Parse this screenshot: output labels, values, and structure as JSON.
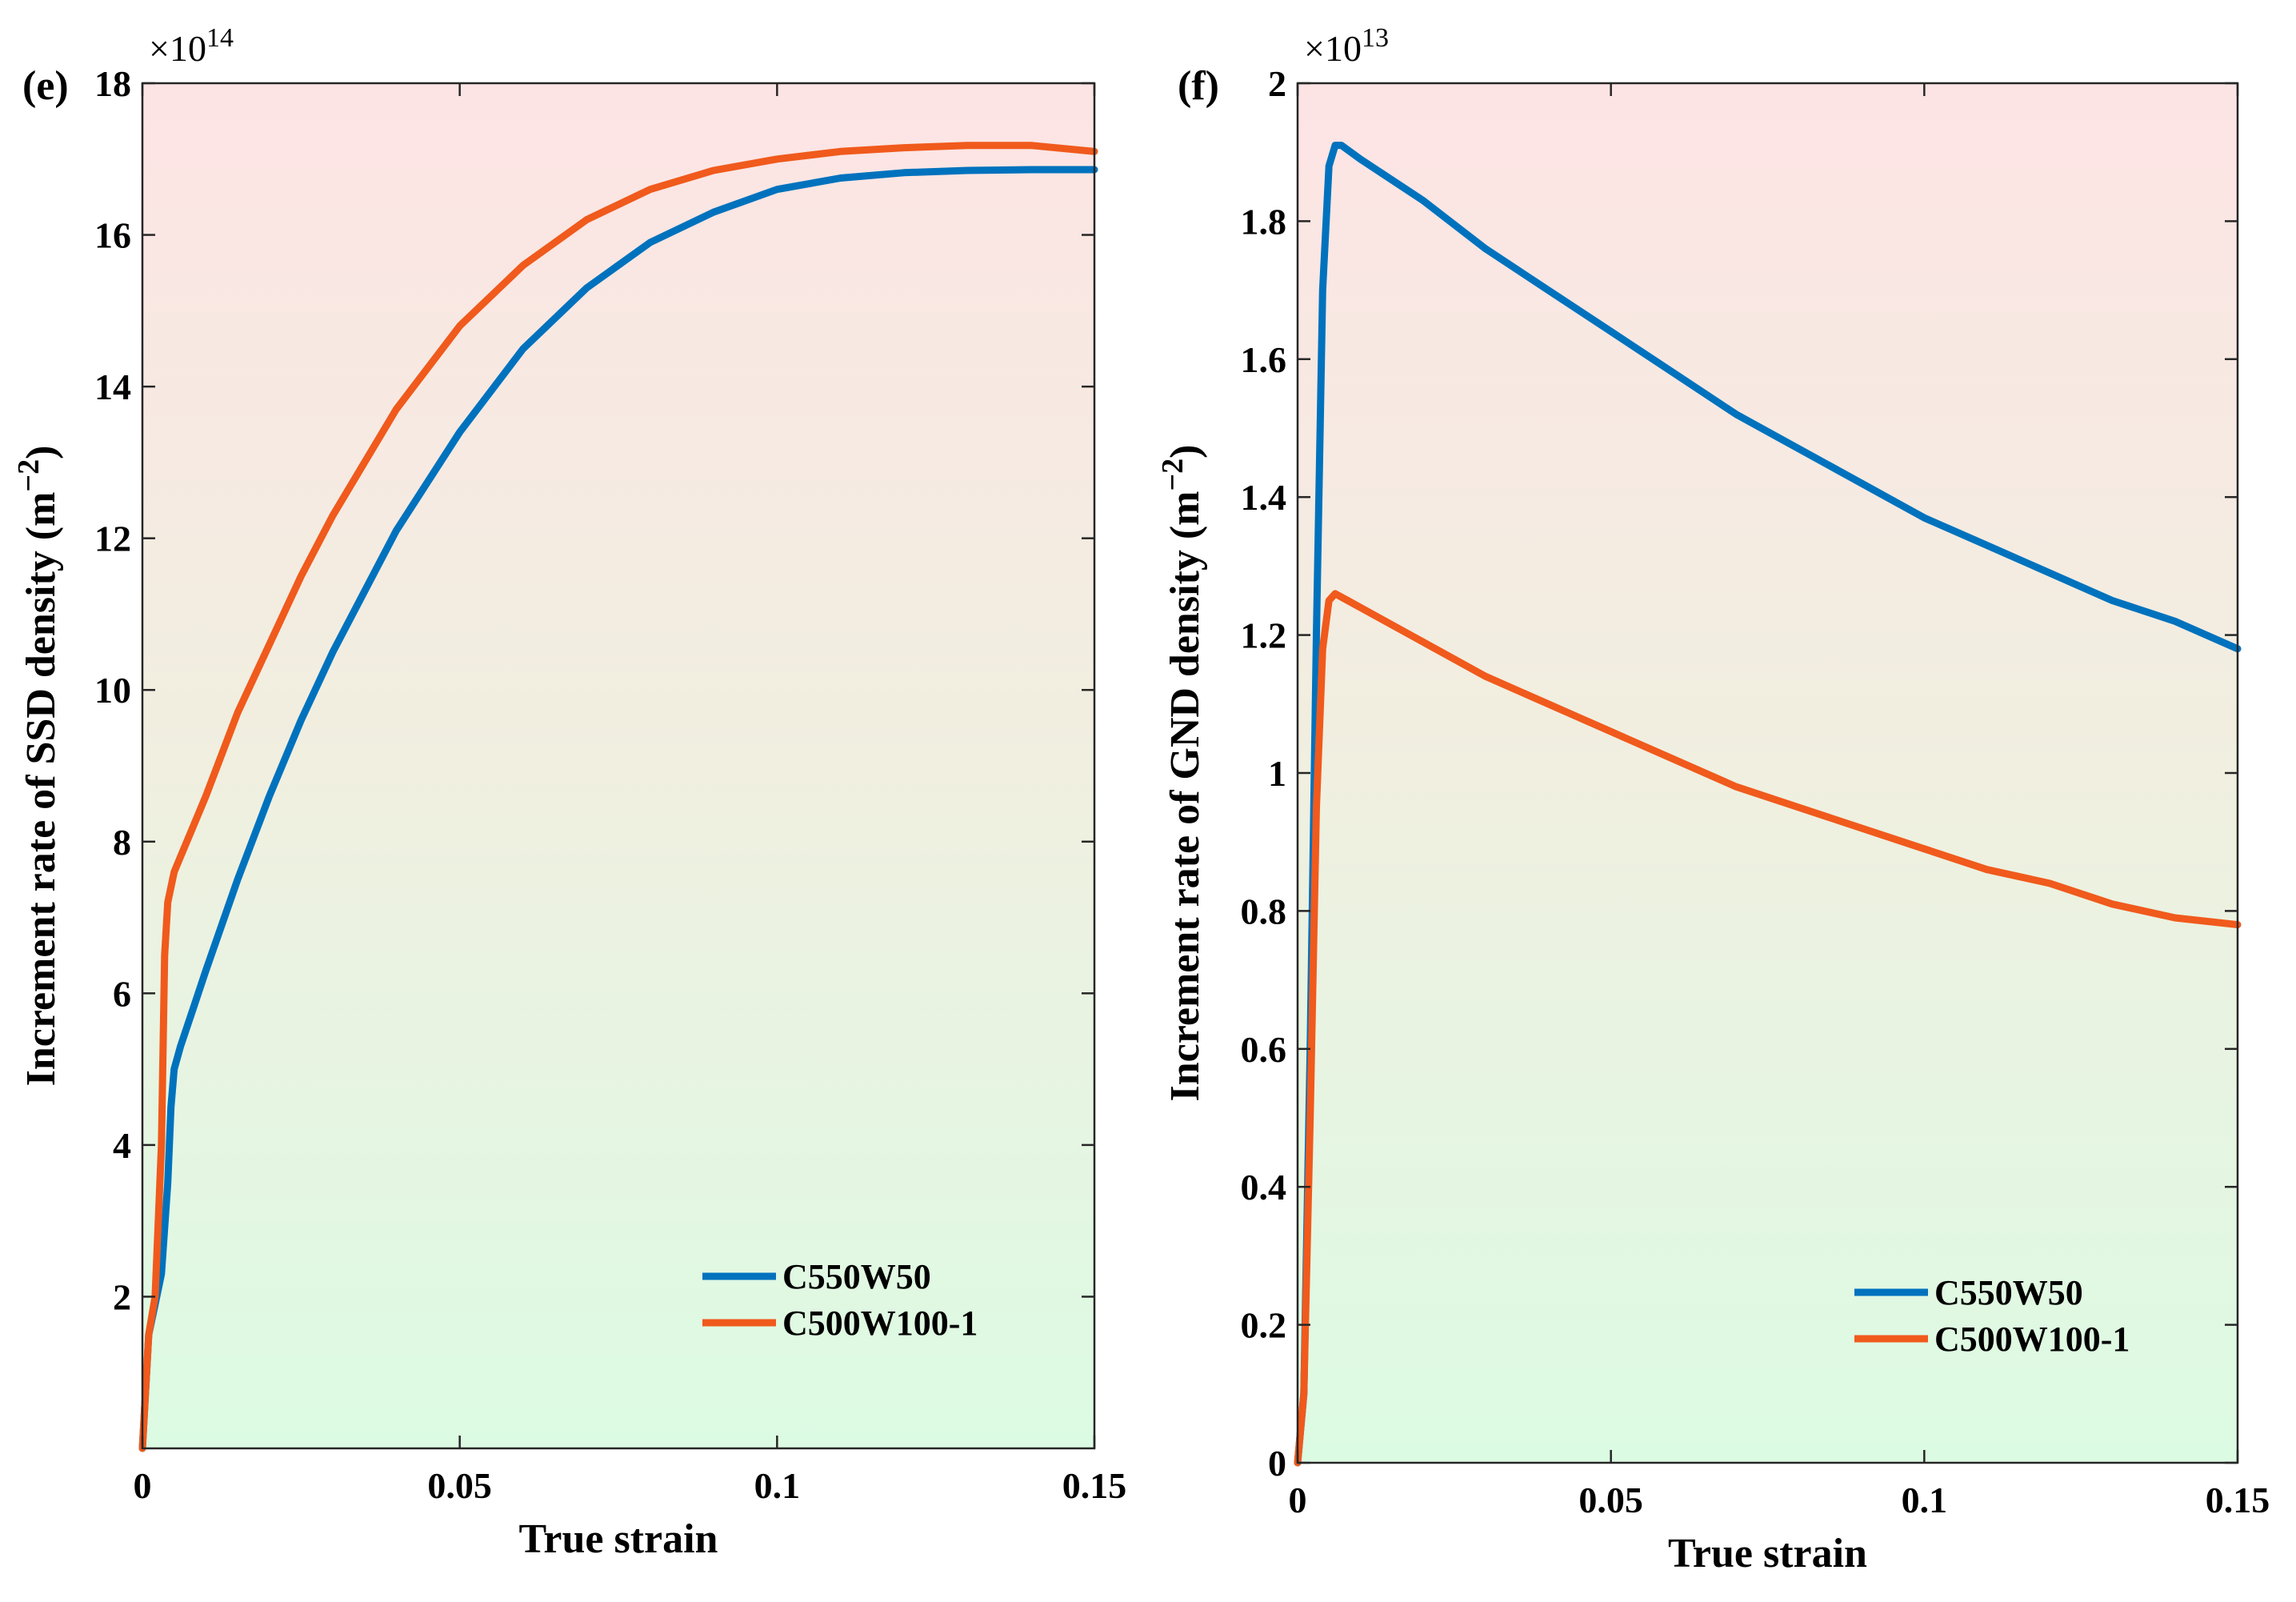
{
  "chart_data": [
    {
      "type": "line",
      "panel_label": "(e)",
      "xlabel": "True strain",
      "ylabel_main": "Increment rate of SSD density (m",
      "ylabel_sup": "−2",
      "ylabel_end": ")",
      "exponent_base": "×10",
      "exponent_power": "14",
      "xlim": [
        0,
        0.15
      ],
      "ylim": [
        0,
        18
      ],
      "xticks": [
        0,
        0.05,
        0.1,
        0.15
      ],
      "xtick_labels": [
        "0",
        "0.05",
        "0.1",
        "0.15"
      ],
      "yticks": [
        2,
        4,
        6,
        8,
        10,
        12,
        14,
        16,
        18
      ],
      "ytick_labels": [
        "2",
        "4",
        "6",
        "8",
        "10",
        "12",
        "14",
        "16",
        "18"
      ],
      "legend_position": "bottom-right",
      "series": [
        {
          "name": "C550W50",
          "color": "#0072BD",
          "x": [
            0,
            0.001,
            0.002,
            0.003,
            0.004,
            0.0045,
            0.005,
            0.006,
            0.008,
            0.01,
            0.015,
            0.02,
            0.025,
            0.03,
            0.04,
            0.05,
            0.06,
            0.07,
            0.08,
            0.09,
            0.1,
            0.11,
            0.12,
            0.13,
            0.14,
            0.15
          ],
          "y": [
            0,
            1.5,
            1.9,
            2.3,
            3.5,
            4.5,
            5.0,
            5.3,
            5.8,
            6.3,
            7.5,
            8.6,
            9.6,
            10.5,
            12.1,
            13.4,
            14.5,
            15.3,
            15.9,
            16.3,
            16.6,
            16.75,
            16.82,
            16.85,
            16.86,
            16.86
          ]
        },
        {
          "name": "C500W100-1",
          "color": "#F05A1C",
          "x": [
            0,
            0.001,
            0.002,
            0.003,
            0.0035,
            0.004,
            0.005,
            0.006,
            0.008,
            0.01,
            0.015,
            0.02,
            0.025,
            0.03,
            0.04,
            0.05,
            0.06,
            0.07,
            0.08,
            0.09,
            0.1,
            0.11,
            0.12,
            0.13,
            0.14,
            0.15
          ],
          "y": [
            0,
            1.5,
            2.0,
            4.0,
            6.5,
            7.2,
            7.6,
            7.8,
            8.2,
            8.6,
            9.7,
            10.6,
            11.5,
            12.3,
            13.7,
            14.8,
            15.6,
            16.2,
            16.6,
            16.85,
            17.0,
            17.1,
            17.15,
            17.18,
            17.18,
            17.1
          ]
        }
      ]
    },
    {
      "type": "line",
      "panel_label": "(f)",
      "xlabel": "True strain",
      "ylabel_main": "Increment rate of GND density (m",
      "ylabel_sup": "−2",
      "ylabel_end": ")",
      "exponent_base": "×10",
      "exponent_power": "13",
      "xlim": [
        0,
        0.15
      ],
      "ylim": [
        0,
        2
      ],
      "xticks": [
        0,
        0.05,
        0.1,
        0.15
      ],
      "xtick_labels": [
        "0",
        "0.05",
        "0.1",
        "0.15"
      ],
      "yticks": [
        0,
        0.2,
        0.4,
        0.6,
        0.8,
        1,
        1.2,
        1.4,
        1.6,
        1.8,
        2
      ],
      "ytick_labels": [
        "0",
        "0.2",
        "0.4",
        "0.6",
        "0.8",
        "1",
        "1.2",
        "1.4",
        "1.6",
        "1.8",
        "2"
      ],
      "legend_position": "bottom-right",
      "series": [
        {
          "name": "C550W50",
          "color": "#0072BD",
          "x": [
            0,
            0.001,
            0.002,
            0.003,
            0.004,
            0.005,
            0.006,
            0.007,
            0.01,
            0.02,
            0.03,
            0.04,
            0.05,
            0.06,
            0.07,
            0.08,
            0.09,
            0.1,
            0.11,
            0.12,
            0.13,
            0.14,
            0.15
          ],
          "y": [
            0,
            0.1,
            0.6,
            1.2,
            1.7,
            1.88,
            1.91,
            1.91,
            1.89,
            1.83,
            1.76,
            1.7,
            1.64,
            1.58,
            1.52,
            1.47,
            1.42,
            1.37,
            1.33,
            1.29,
            1.25,
            1.22,
            1.18
          ]
        },
        {
          "name": "C500W100-1",
          "color": "#F05A1C",
          "x": [
            0,
            0.001,
            0.002,
            0.003,
            0.004,
            0.005,
            0.006,
            0.008,
            0.01,
            0.02,
            0.03,
            0.04,
            0.05,
            0.06,
            0.07,
            0.08,
            0.09,
            0.1,
            0.11,
            0.12,
            0.13,
            0.14,
            0.15
          ],
          "y": [
            0,
            0.1,
            0.5,
            0.95,
            1.18,
            1.25,
            1.26,
            1.25,
            1.24,
            1.19,
            1.14,
            1.1,
            1.06,
            1.02,
            0.98,
            0.95,
            0.92,
            0.89,
            0.86,
            0.84,
            0.81,
            0.79,
            0.78
          ]
        }
      ]
    }
  ]
}
